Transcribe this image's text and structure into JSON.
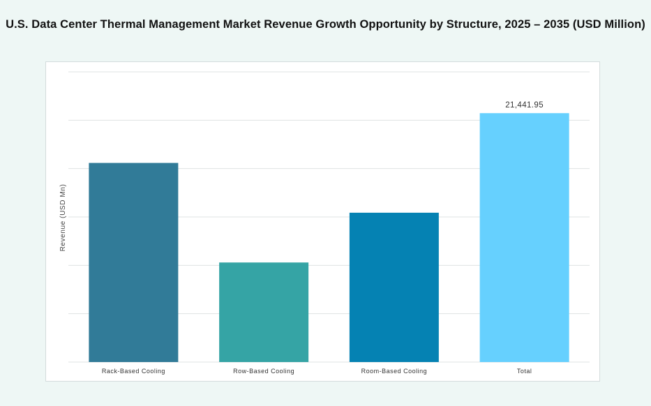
{
  "chart_data": {
    "type": "bar",
    "title": "U.S. Data Center Thermal Management Market Revenue Growth Opportunity by Structure, 2025 – 2035 (USD Million)",
    "xlabel": "",
    "ylabel": "Revenue (USD Mn)",
    "categories": [
      "Rack-Based Cooling",
      "Row-Based Cooling",
      "Room-Based Cooling",
      "Total"
    ],
    "values": [
      17153.56,
      8576.78,
      12865.17,
      21441.95
    ],
    "data_labels": [
      "",
      "",
      "",
      "21,441.95"
    ],
    "colors": [
      "#317b98",
      "#35a4a5",
      "#0582b3",
      "#66d0fe"
    ],
    "ylim": [
      0,
      25000
    ],
    "grid": true,
    "legend": "none"
  }
}
